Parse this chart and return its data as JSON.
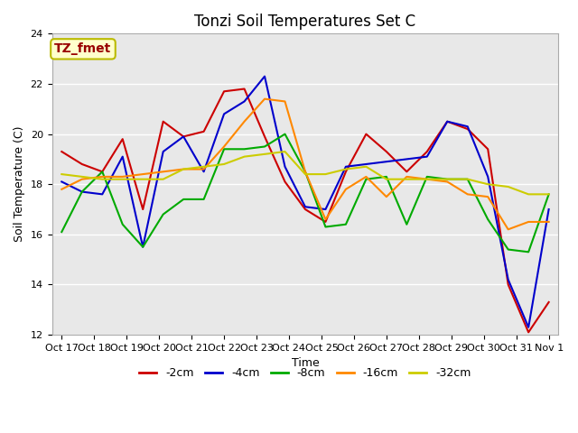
{
  "title": "Tonzi Soil Temperatures Set C",
  "xlabel": "Time",
  "ylabel": "Soil Temperature (C)",
  "ylim": [
    12,
    24
  ],
  "yticks": [
    12,
    14,
    16,
    18,
    20,
    22,
    24
  ],
  "annotation_text": "TZ_fmet",
  "x_labels": [
    "Oct 17",
    "Oct 18",
    "Oct 19",
    "Oct 20",
    "Oct 21",
    "Oct 22",
    "Oct 23",
    "Oct 24",
    "Oct 25",
    "Oct 26",
    "Oct 27",
    "Oct 28",
    "Oct 29",
    "Oct 30",
    "Oct 31",
    "Nov 1"
  ],
  "series": {
    "-2cm": {
      "color": "#cc0000",
      "values": [
        19.3,
        18.8,
        18.5,
        19.8,
        17.0,
        20.5,
        19.9,
        20.1,
        21.7,
        21.8,
        19.9,
        18.1,
        17.0,
        16.5,
        18.5,
        20.0,
        19.3,
        18.5,
        19.3,
        20.5,
        20.2,
        19.4,
        14.0,
        12.1,
        13.3
      ]
    },
    "-4cm": {
      "color": "#0000cc",
      "values": [
        18.1,
        17.7,
        17.6,
        19.1,
        15.5,
        19.3,
        19.9,
        18.5,
        20.8,
        21.3,
        22.3,
        18.7,
        17.1,
        17.0,
        18.7,
        18.8,
        18.9,
        19.0,
        19.1,
        20.5,
        20.3,
        18.3,
        14.2,
        12.3,
        17.0
      ]
    },
    "-8cm": {
      "color": "#00aa00",
      "values": [
        16.1,
        17.7,
        18.5,
        16.4,
        15.5,
        16.8,
        17.4,
        17.4,
        19.4,
        19.4,
        19.5,
        20.0,
        18.5,
        16.3,
        16.4,
        18.2,
        18.3,
        16.4,
        18.3,
        18.2,
        18.2,
        16.6,
        15.4,
        15.3,
        17.6
      ]
    },
    "-16cm": {
      "color": "#ff8800",
      "values": [
        17.8,
        18.2,
        18.3,
        18.3,
        18.4,
        18.5,
        18.6,
        18.6,
        19.5,
        20.5,
        21.4,
        21.3,
        18.5,
        16.6,
        17.8,
        18.3,
        17.5,
        18.3,
        18.2,
        18.1,
        17.6,
        17.5,
        16.2,
        16.5,
        16.5
      ]
    },
    "-32cm": {
      "color": "#cccc00",
      "values": [
        18.4,
        18.3,
        18.2,
        18.2,
        18.2,
        18.2,
        18.6,
        18.7,
        18.8,
        19.1,
        19.2,
        19.3,
        18.4,
        18.4,
        18.6,
        18.7,
        18.2,
        18.2,
        18.2,
        18.2,
        18.2,
        18.0,
        17.9,
        17.6,
        17.6
      ]
    }
  },
  "legend_labels": [
    "-2cm",
    "-4cm",
    "-8cm",
    "-16cm",
    "-32cm"
  ],
  "legend_colors": [
    "#cc0000",
    "#0000cc",
    "#00aa00",
    "#ff8800",
    "#cccc00"
  ],
  "plot_bg_color": "#e8e8e8",
  "fig_bg_color": "#ffffff",
  "grid_color": "#ffffff",
  "title_fontsize": 12,
  "axis_label_fontsize": 9,
  "tick_fontsize": 8,
  "legend_fontsize": 9,
  "linewidth": 1.5,
  "annotation_facecolor": "#ffffcc",
  "annotation_edgecolor": "#bbbb00",
  "annotation_textcolor": "#990000"
}
